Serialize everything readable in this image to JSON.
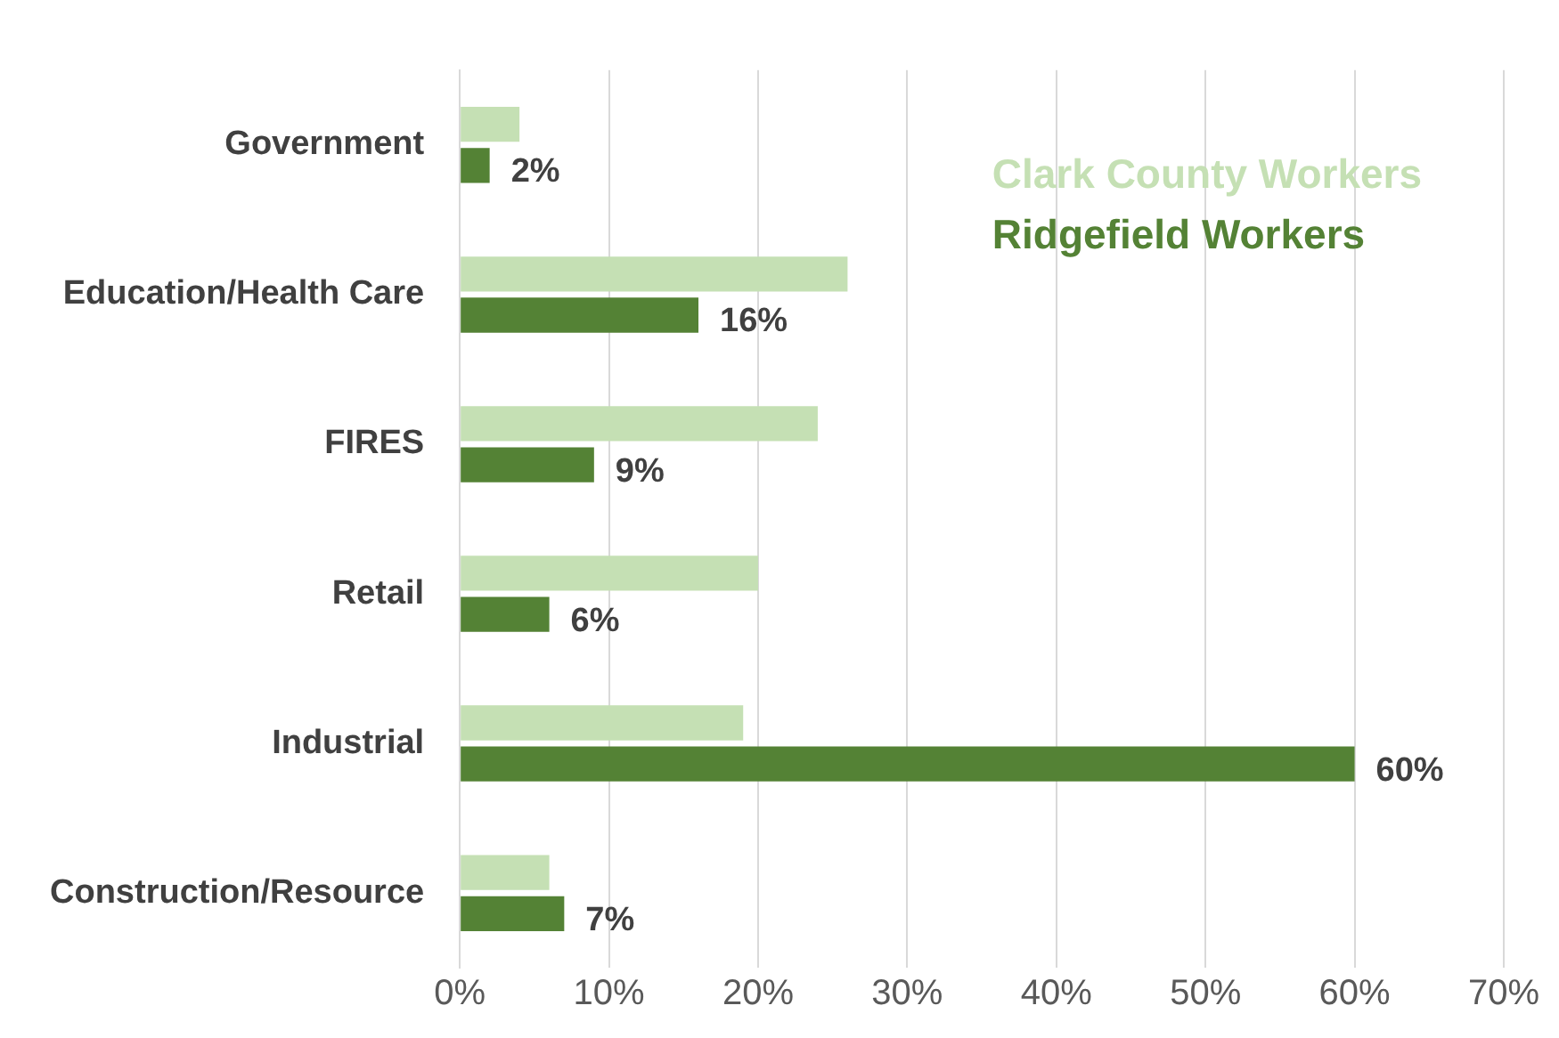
{
  "chart_data": {
    "type": "bar",
    "orientation": "horizontal",
    "categories": [
      "Government",
      "Education/Health Care",
      "FIRES",
      "Retail",
      "Industrial",
      "Construction/Resource"
    ],
    "series": [
      {
        "name": "Clark County Workers",
        "color": "#c5e0b4",
        "values": [
          4,
          26,
          24,
          20,
          19,
          6
        ]
      },
      {
        "name": "Ridgefield Workers",
        "color": "#548235",
        "values": [
          2,
          16,
          9,
          6,
          60,
          7
        ],
        "value_labels": [
          "2%",
          "16%",
          "9%",
          "6%",
          "60%",
          "7%"
        ]
      }
    ],
    "xlim": [
      0,
      70
    ],
    "xticks": [
      {
        "value": 0,
        "label": "0%"
      },
      {
        "value": 10,
        "label": "10%"
      },
      {
        "value": 20,
        "label": "20%"
      },
      {
        "value": 30,
        "label": "30%"
      },
      {
        "value": 40,
        "label": "40%"
      },
      {
        "value": 50,
        "label": "50%"
      },
      {
        "value": 60,
        "label": "60%"
      },
      {
        "value": 70,
        "label": "70%"
      }
    ],
    "grid": "x",
    "legend": "top right"
  }
}
